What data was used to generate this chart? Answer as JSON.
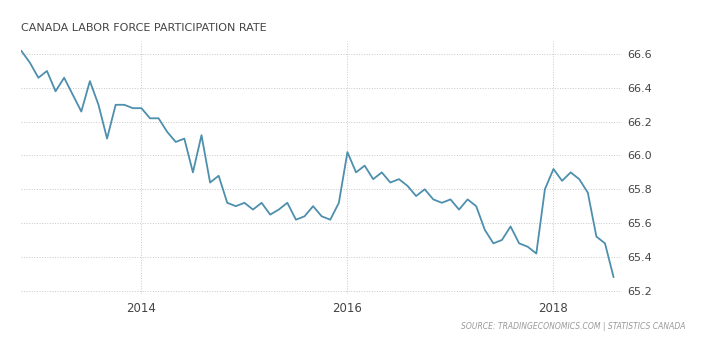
{
  "title": "CANADA LABOR FORCE PARTICIPATION RATE",
  "source_text": "SOURCE: TRADINGECONOMICS.COM | STATISTICS CANADA",
  "line_color": "#4d8fac",
  "bg_color": "#ffffff",
  "grid_color": "#c8c8c8",
  "ylim": [
    65.18,
    66.68
  ],
  "yticks": [
    65.2,
    65.4,
    65.6,
    65.8,
    66.0,
    66.2,
    66.4,
    66.6
  ],
  "xtick_labels": [
    "2014",
    "2016",
    "2018"
  ],
  "xtick_positions": [
    14,
    38,
    62
  ],
  "xlim_start": 0,
  "xlim_end": 70,
  "x_values": [
    0,
    1,
    2,
    3,
    4,
    5,
    6,
    7,
    8,
    9,
    10,
    11,
    12,
    13,
    14,
    15,
    16,
    17,
    18,
    19,
    20,
    21,
    22,
    23,
    24,
    25,
    26,
    27,
    28,
    29,
    30,
    31,
    32,
    33,
    34,
    35,
    36,
    37,
    38,
    39,
    40,
    41,
    42,
    43,
    44,
    45,
    46,
    47,
    48,
    49,
    50,
    51,
    52,
    53,
    54,
    55,
    56,
    57,
    58,
    59,
    60,
    61,
    62,
    63,
    64,
    65,
    66,
    67,
    68,
    69
  ],
  "y_values": [
    66.62,
    66.55,
    66.46,
    66.5,
    66.38,
    66.46,
    66.36,
    66.26,
    66.44,
    66.3,
    66.1,
    66.3,
    66.3,
    66.28,
    66.28,
    66.22,
    66.22,
    66.14,
    66.08,
    66.1,
    65.9,
    66.12,
    65.84,
    65.88,
    65.72,
    65.7,
    65.72,
    65.68,
    65.72,
    65.65,
    65.68,
    65.72,
    65.62,
    65.64,
    65.7,
    65.64,
    65.62,
    65.72,
    66.02,
    65.9,
    65.94,
    65.86,
    65.9,
    65.84,
    65.86,
    65.82,
    65.76,
    65.8,
    65.74,
    65.72,
    65.74,
    65.68,
    65.74,
    65.7,
    65.56,
    65.48,
    65.5,
    65.58,
    65.48,
    65.46,
    65.42,
    65.8,
    65.92,
    65.85,
    65.9,
    65.86,
    65.78,
    65.52,
    65.48,
    65.28
  ]
}
